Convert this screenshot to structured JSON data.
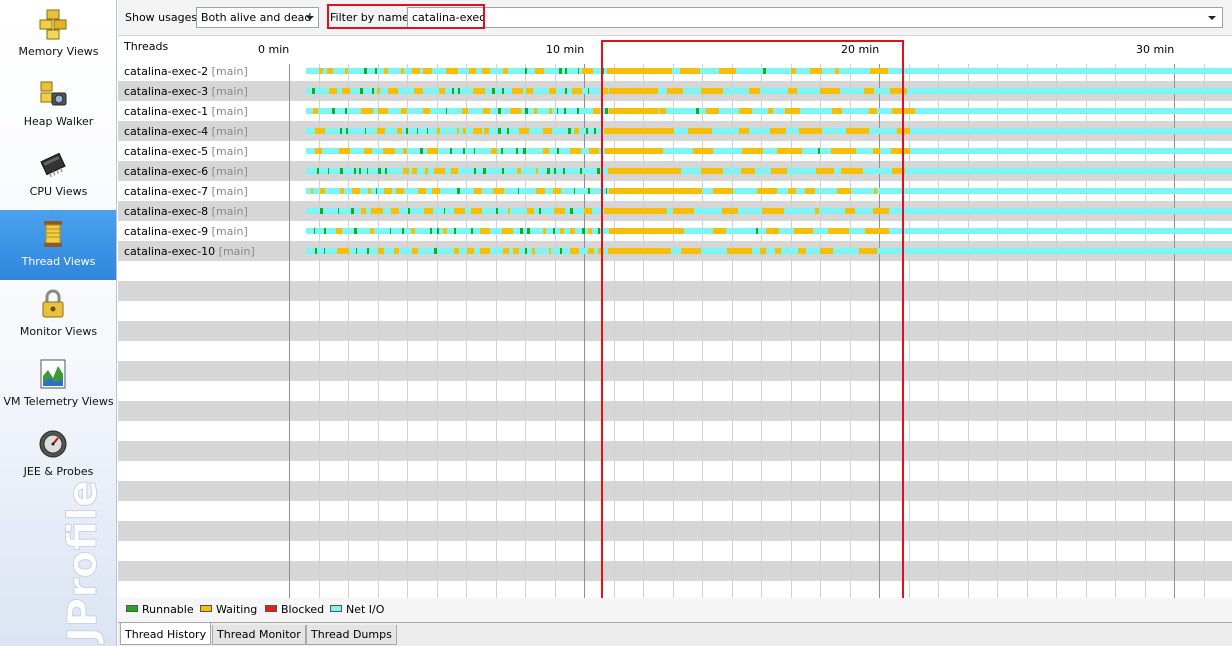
{
  "sidebar": {
    "items": [
      {
        "label": "Memory Views",
        "icon": "memory-views-icon"
      },
      {
        "label": "Heap Walker",
        "icon": "heap-walker-icon"
      },
      {
        "label": "CPU Views",
        "icon": "cpu-views-icon"
      },
      {
        "label": "Thread Views",
        "icon": "thread-views-icon",
        "active": true
      },
      {
        "label": "Monitor Views",
        "icon": "monitor-views-icon"
      },
      {
        "label": "VM Telemetry Views",
        "icon": "vm-telemetry-icon"
      },
      {
        "label": "JEE & Probes",
        "icon": "jee-probes-icon"
      }
    ],
    "brand": "JProfiler"
  },
  "toolbar": {
    "usages_label": "Show usages:",
    "usages_value": "Both alive and dead",
    "filter_label": "Filter by name:",
    "filter_value": "catalina-exec"
  },
  "timeline": {
    "threads_header": "Threads",
    "ticks": [
      {
        "label": "0 min",
        "minute": 0
      },
      {
        "label": "10 min",
        "minute": 10
      },
      {
        "label": "20 min",
        "minute": 20
      },
      {
        "label": "30 min",
        "minute": 30
      }
    ],
    "threads": [
      {
        "name": "catalina-exec-2",
        "group": "[main]"
      },
      {
        "name": "catalina-exec-3",
        "group": "[main]"
      },
      {
        "name": "catalina-exec-1",
        "group": "[main]"
      },
      {
        "name": "catalina-exec-4",
        "group": "[main]"
      },
      {
        "name": "catalina-exec-5",
        "group": "[main]"
      },
      {
        "name": "catalina-exec-6",
        "group": "[main]"
      },
      {
        "name": "catalina-exec-7",
        "group": "[main]"
      },
      {
        "name": "catalina-exec-8",
        "group": "[main]"
      },
      {
        "name": "catalina-exec-9",
        "group": "[main]"
      },
      {
        "name": "catalina-exec-10",
        "group": "[main]"
      }
    ]
  },
  "legend": [
    {
      "label": "Runnable",
      "color": "#1fa81f"
    },
    {
      "label": "Waiting",
      "color": "#f7be07"
    },
    {
      "label": "Blocked",
      "color": "#e81b1b"
    },
    {
      "label": "Net I/O",
      "color": "#7ff4f4"
    }
  ],
  "tabs": [
    {
      "label": "Thread History",
      "active": true
    },
    {
      "label": "Thread Monitor"
    },
    {
      "label": "Thread Dumps"
    }
  ]
}
